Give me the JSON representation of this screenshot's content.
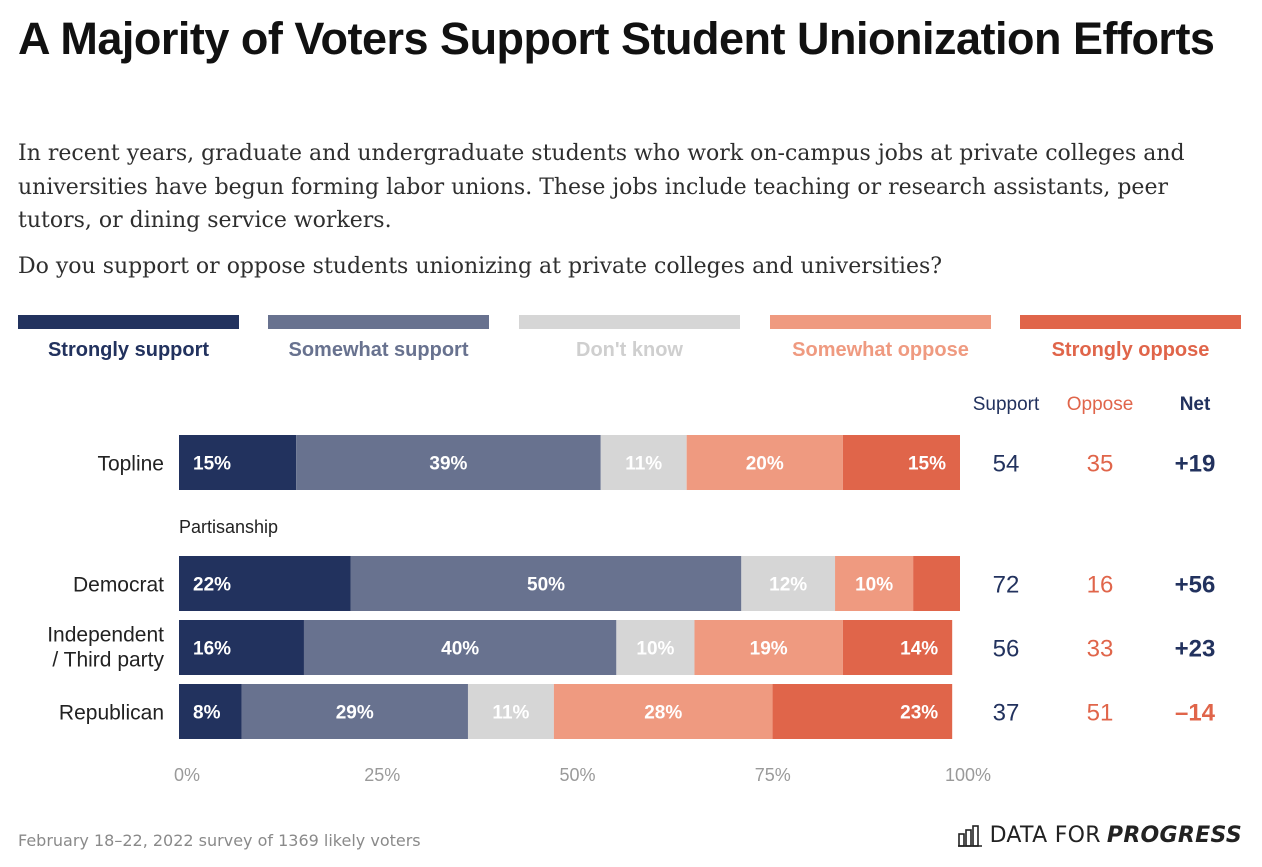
{
  "header": {
    "title": "A Majority of Voters Support Student Unionization Efforts",
    "subtitle": "In recent years, graduate and undergraduate students who work on-campus jobs at private colleges and universities have begun forming labor unions. These jobs include teaching or research assistants, peer tutors, or dining service workers.",
    "question": "Do you support or oppose students unionizing at private colleges and universities?"
  },
  "footer": {
    "note": "February 18–22, 2022 survey of 1369 likely voters",
    "brand_prefix": "DATA FOR",
    "brand_suffix": "PROGRESS",
    "brand_icon": "bar-chart-icon"
  },
  "colors": {
    "strongly_support": "#22325e",
    "somewhat_support": "#68728f",
    "dont_know": "#d6d6d6",
    "somewhat_oppose": "#ef9a80",
    "strongly_oppose": "#e0654a"
  },
  "chart_data": {
    "type": "bar",
    "orientation": "horizontal",
    "stacked": true,
    "xlim": [
      0,
      100
    ],
    "x_ticks": [
      "0%",
      "25%",
      "50%",
      "75%",
      "100%"
    ],
    "legend_position": "top",
    "series": [
      {
        "name": "Strongly support",
        "color": "#22325e"
      },
      {
        "name": "Somewhat support",
        "color": "#68728f"
      },
      {
        "name": "Don't know",
        "color": "#d6d6d6"
      },
      {
        "name": "Somewhat oppose",
        "color": "#ef9a80"
      },
      {
        "name": "Strongly oppose",
        "color": "#e0654a"
      }
    ],
    "columns": [
      {
        "label": "Support",
        "color": "#22325e"
      },
      {
        "label": "Oppose",
        "color": "#e0654a"
      },
      {
        "label": "Net",
        "color": "#22325e"
      }
    ],
    "section_label": "Partisanship",
    "rows": [
      {
        "category": "Topline",
        "values": [
          15,
          39,
          11,
          20,
          15
        ],
        "labels": [
          "15%",
          "39%",
          "11%",
          "20%",
          "15%"
        ],
        "support": "54",
        "oppose": "35",
        "net": "+19",
        "net_positive": true
      },
      {
        "category": "Democrat",
        "values": [
          22,
          50,
          12,
          10,
          6
        ],
        "labels": [
          "22%",
          "50%",
          "12%",
          "10%",
          ""
        ],
        "support": "72",
        "oppose": "16",
        "net": "+56",
        "net_positive": true
      },
      {
        "category": "Independent / Third party",
        "category_lines": [
          "Independent",
          "/ Third party"
        ],
        "values": [
          16,
          40,
          10,
          19,
          14
        ],
        "labels": [
          "16%",
          "40%",
          "10%",
          "19%",
          "14%"
        ],
        "support": "56",
        "oppose": "33",
        "net": "+23",
        "net_positive": true
      },
      {
        "category": "Republican",
        "values": [
          8,
          29,
          11,
          28,
          23
        ],
        "labels": [
          "8%",
          "29%",
          "11%",
          "28%",
          "23%"
        ],
        "support": "37",
        "oppose": "51",
        "net": "–14",
        "net_positive": false
      }
    ]
  }
}
